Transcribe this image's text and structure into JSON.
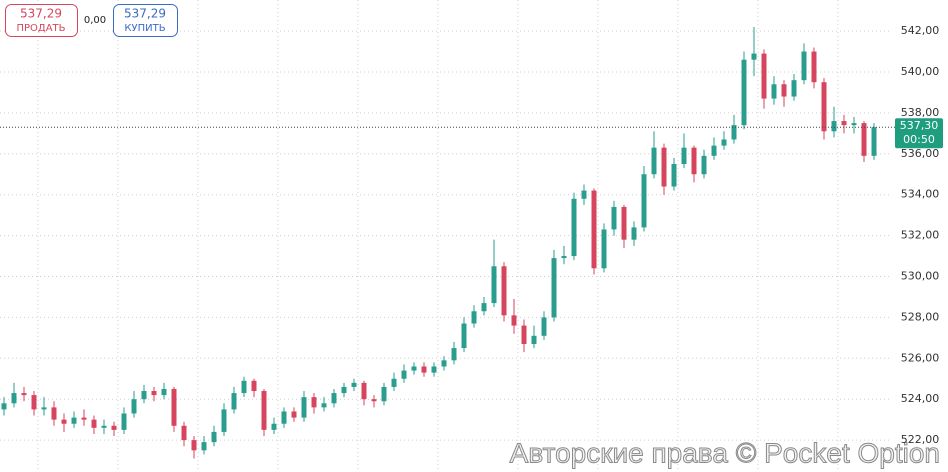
{
  "chart_data": {
    "type": "candlestick",
    "up_color": "#2a9d8f",
    "down_color": "#d6455d",
    "grid": true,
    "ylim": [
      520.44,
      543.52
    ],
    "yticks": [
      {
        "value": 522,
        "label": "522,00"
      },
      {
        "value": 524,
        "label": "524,00"
      },
      {
        "value": 526,
        "label": "526,00"
      },
      {
        "value": 528,
        "label": "528,00"
      },
      {
        "value": 530,
        "label": "530,00"
      },
      {
        "value": 532,
        "label": "532,00"
      },
      {
        "value": 534,
        "label": "534,00"
      },
      {
        "value": 536,
        "label": "536,00"
      },
      {
        "value": 538,
        "label": "538,00"
      },
      {
        "value": 540,
        "label": "540,00"
      },
      {
        "value": 542,
        "label": "542,00"
      }
    ],
    "open": [
      523.5,
      523.8,
      524.3,
      524.2,
      523.5,
      523.6,
      523.0,
      522.8,
      523.1,
      523.0,
      522.6,
      522.7,
      522.5,
      523.3,
      524.0,
      524.4,
      524.2,
      524.5,
      522.7,
      522.0,
      521.5,
      521.9,
      522.4,
      523.5,
      524.3,
      524.9,
      524.4,
      522.5,
      522.8,
      523.4,
      523.1,
      524.1,
      523.6,
      523.8,
      524.3,
      524.6,
      524.8,
      524.0,
      523.9,
      524.6,
      525.0,
      525.4,
      525.6,
      525.3,
      525.6,
      525.9,
      526.5,
      527.7,
      528.3,
      528.7,
      530.5,
      528.1,
      527.6,
      526.7,
      527.1,
      528.0,
      530.9,
      531.0,
      533.8,
      534.2,
      530.4,
      532.3,
      533.4,
      531.8,
      532.4,
      535.0,
      536.3,
      534.4,
      535.5,
      536.3,
      535.0,
      535.9,
      536.4,
      536.7,
      537.4,
      540.6,
      540.9,
      538.7,
      539.4,
      538.8,
      539.6,
      541.0,
      539.5,
      537.1,
      537.6,
      537.4,
      537.5,
      535.9
    ],
    "high": [
      524.1,
      524.8,
      524.6,
      524.4,
      524.1,
      523.9,
      523.3,
      523.4,
      523.5,
      523.2,
      523.0,
      522.9,
      523.6,
      524.4,
      524.7,
      524.6,
      524.8,
      524.6,
      522.9,
      522.2,
      522.2,
      522.7,
      523.8,
      524.6,
      525.1,
      525.0,
      524.5,
      523.1,
      523.6,
      523.6,
      524.4,
      524.3,
      524.1,
      524.5,
      524.8,
      525.0,
      524.9,
      524.2,
      524.8,
      525.3,
      525.7,
      525.8,
      525.8,
      525.8,
      526.1,
      526.8,
      528.0,
      528.6,
      529.0,
      531.8,
      530.7,
      528.9,
      527.9,
      527.6,
      528.3,
      531.3,
      531.5,
      534.1,
      534.5,
      534.3,
      532.6,
      533.7,
      533.5,
      532.7,
      535.4,
      537.1,
      536.5,
      535.8,
      537.0,
      536.4,
      536.2,
      536.8,
      537.1,
      537.9,
      541.0,
      542.2,
      541.1,
      539.8,
      539.6,
      539.9,
      541.4,
      541.2,
      539.7,
      538.3,
      537.9,
      537.8,
      537.6,
      537.5
    ],
    "low": [
      523.2,
      523.6,
      523.9,
      523.2,
      523.2,
      522.7,
      522.4,
      522.6,
      522.7,
      522.3,
      522.3,
      522.2,
      522.3,
      523.1,
      523.8,
      523.9,
      524.0,
      522.4,
      521.7,
      521.1,
      521.3,
      521.7,
      522.2,
      523.3,
      524.1,
      524.1,
      522.2,
      522.3,
      522.6,
      522.9,
      522.9,
      523.3,
      523.4,
      523.6,
      524.1,
      524.4,
      523.7,
      523.6,
      523.7,
      524.4,
      524.8,
      525.2,
      525.1,
      525.1,
      525.4,
      525.7,
      526.3,
      527.5,
      528.1,
      528.5,
      527.8,
      527.2,
      526.3,
      526.5,
      526.9,
      527.8,
      530.6,
      530.8,
      533.5,
      530.1,
      530.2,
      532.0,
      531.4,
      531.5,
      532.2,
      534.8,
      534.0,
      534.2,
      535.3,
      534.6,
      534.8,
      535.7,
      536.2,
      536.5,
      537.2,
      539.8,
      538.2,
      538.4,
      538.3,
      538.6,
      539.4,
      539.2,
      536.7,
      536.8,
      537.0,
      537.0,
      535.6,
      535.7
    ],
    "close": [
      523.8,
      524.3,
      524.2,
      523.5,
      523.6,
      523.0,
      522.8,
      523.1,
      523.0,
      522.6,
      522.7,
      522.5,
      523.3,
      524.0,
      524.4,
      524.2,
      524.5,
      522.7,
      522.0,
      521.5,
      521.9,
      522.4,
      523.5,
      524.3,
      524.9,
      524.4,
      522.5,
      522.8,
      523.4,
      523.1,
      524.1,
      523.6,
      523.8,
      524.3,
      524.6,
      524.8,
      524.0,
      523.9,
      524.6,
      525.0,
      525.4,
      525.6,
      525.3,
      525.6,
      525.9,
      526.5,
      527.7,
      528.3,
      528.7,
      530.5,
      528.1,
      527.6,
      526.7,
      527.1,
      528.0,
      530.9,
      531.0,
      533.8,
      534.2,
      530.4,
      532.3,
      533.4,
      531.8,
      532.4,
      535.0,
      536.3,
      534.4,
      535.5,
      536.3,
      535.0,
      535.9,
      536.4,
      536.7,
      537.4,
      540.6,
      540.9,
      538.7,
      539.4,
      538.8,
      539.6,
      541.0,
      539.5,
      537.1,
      537.6,
      537.4,
      537.5,
      535.9,
      537.3
    ],
    "price_line": {
      "value": 537.3,
      "label": "537,30",
      "timer": "00:50"
    }
  },
  "toolbar": {
    "sell": {
      "price": "537,29",
      "label": "ПРОДАТЬ"
    },
    "spread": "0,00",
    "buy": {
      "price": "537,29",
      "label": "КУПИТЬ"
    }
  },
  "watermark": "Авторские права © Pocket Option"
}
